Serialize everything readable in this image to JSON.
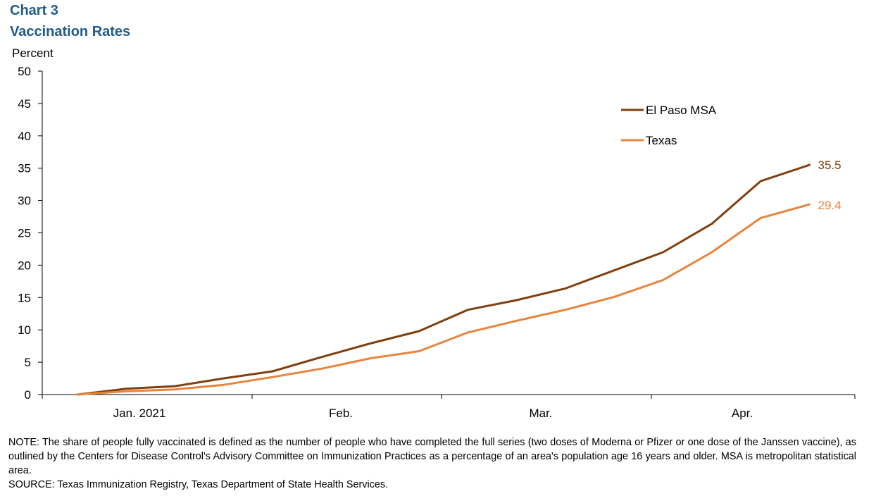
{
  "header": {
    "chart_label": "Chart 3",
    "title": "Vaccination Rates"
  },
  "chart_data": {
    "type": "line",
    "title": "Vaccination Rates",
    "ylabel": "Percent",
    "xlabel": "",
    "ylim": [
      0,
      50
    ],
    "yticks": [
      0,
      5,
      10,
      15,
      20,
      25,
      30,
      35,
      40,
      45,
      50
    ],
    "x_tick_labels": [
      "Jan. 2021",
      "Feb.",
      "Mar.",
      "Apr."
    ],
    "grid": false,
    "legend_position": "top-right",
    "series": [
      {
        "name": "El Paso MSA",
        "color": "#7f3f0e",
        "values": [
          0.0,
          0.9,
          1.3,
          2.5,
          3.6,
          5.8,
          7.9,
          9.8,
          13.1,
          14.6,
          16.4,
          19.2,
          22.0,
          26.4,
          33.0,
          35.5
        ],
        "end_label": "35.5"
      },
      {
        "name": "Texas",
        "color": "#e8843c",
        "values": [
          0.0,
          0.5,
          0.8,
          1.5,
          2.7,
          4.0,
          5.6,
          6.7,
          9.6,
          11.4,
          13.1,
          15.1,
          17.7,
          22.0,
          27.3,
          29.4
        ],
        "end_label": "29.4"
      }
    ]
  },
  "footer": {
    "note": "NOTE: The share of people fully vaccinated is defined as the number of people who have completed the full series (two doses of Moderna or Pfizer or one dose of the Janssen vaccine), as outlined by the Centers for Disease Control's Advisory Committee on Immunization Practices as a percentage of an area's population age 16 years and older. MSA is metropolitan statistical area.",
    "source": "SOURCE: Texas Immunization Registry, Texas Department of State Health Services."
  }
}
